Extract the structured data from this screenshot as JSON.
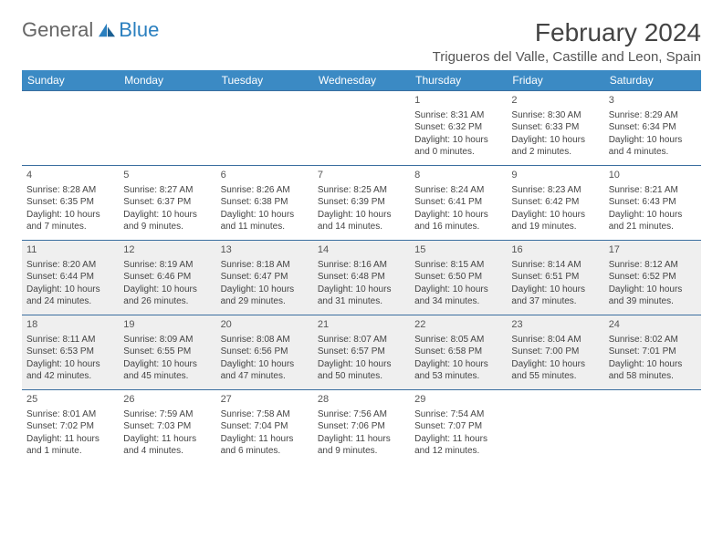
{
  "brand": {
    "part1": "General",
    "part2": "Blue"
  },
  "title": "February 2024",
  "location": "Trigueros del Valle, Castille and Leon, Spain",
  "colors": {
    "header_bg": "#3b8ac4",
    "row_border": "#3b6fa0",
    "shaded_bg": "#efefef",
    "text": "#444"
  },
  "dayHeaders": [
    "Sunday",
    "Monday",
    "Tuesday",
    "Wednesday",
    "Thursday",
    "Friday",
    "Saturday"
  ],
  "weeks": [
    [
      {
        "empty": true
      },
      {
        "empty": true
      },
      {
        "empty": true
      },
      {
        "empty": true
      },
      {
        "day": "1",
        "sunrise": "Sunrise: 8:31 AM",
        "sunset": "Sunset: 6:32 PM",
        "d1": "Daylight: 10 hours",
        "d2": "and 0 minutes."
      },
      {
        "day": "2",
        "sunrise": "Sunrise: 8:30 AM",
        "sunset": "Sunset: 6:33 PM",
        "d1": "Daylight: 10 hours",
        "d2": "and 2 minutes."
      },
      {
        "day": "3",
        "sunrise": "Sunrise: 8:29 AM",
        "sunset": "Sunset: 6:34 PM",
        "d1": "Daylight: 10 hours",
        "d2": "and 4 minutes."
      }
    ],
    [
      {
        "day": "4",
        "sunrise": "Sunrise: 8:28 AM",
        "sunset": "Sunset: 6:35 PM",
        "d1": "Daylight: 10 hours",
        "d2": "and 7 minutes."
      },
      {
        "day": "5",
        "sunrise": "Sunrise: 8:27 AM",
        "sunset": "Sunset: 6:37 PM",
        "d1": "Daylight: 10 hours",
        "d2": "and 9 minutes."
      },
      {
        "day": "6",
        "sunrise": "Sunrise: 8:26 AM",
        "sunset": "Sunset: 6:38 PM",
        "d1": "Daylight: 10 hours",
        "d2": "and 11 minutes."
      },
      {
        "day": "7",
        "sunrise": "Sunrise: 8:25 AM",
        "sunset": "Sunset: 6:39 PM",
        "d1": "Daylight: 10 hours",
        "d2": "and 14 minutes."
      },
      {
        "day": "8",
        "sunrise": "Sunrise: 8:24 AM",
        "sunset": "Sunset: 6:41 PM",
        "d1": "Daylight: 10 hours",
        "d2": "and 16 minutes."
      },
      {
        "day": "9",
        "sunrise": "Sunrise: 8:23 AM",
        "sunset": "Sunset: 6:42 PM",
        "d1": "Daylight: 10 hours",
        "d2": "and 19 minutes."
      },
      {
        "day": "10",
        "sunrise": "Sunrise: 8:21 AM",
        "sunset": "Sunset: 6:43 PM",
        "d1": "Daylight: 10 hours",
        "d2": "and 21 minutes."
      }
    ],
    [
      {
        "day": "11",
        "shaded": true,
        "sunrise": "Sunrise: 8:20 AM",
        "sunset": "Sunset: 6:44 PM",
        "d1": "Daylight: 10 hours",
        "d2": "and 24 minutes."
      },
      {
        "day": "12",
        "shaded": true,
        "sunrise": "Sunrise: 8:19 AM",
        "sunset": "Sunset: 6:46 PM",
        "d1": "Daylight: 10 hours",
        "d2": "and 26 minutes."
      },
      {
        "day": "13",
        "shaded": true,
        "sunrise": "Sunrise: 8:18 AM",
        "sunset": "Sunset: 6:47 PM",
        "d1": "Daylight: 10 hours",
        "d2": "and 29 minutes."
      },
      {
        "day": "14",
        "shaded": true,
        "sunrise": "Sunrise: 8:16 AM",
        "sunset": "Sunset: 6:48 PM",
        "d1": "Daylight: 10 hours",
        "d2": "and 31 minutes."
      },
      {
        "day": "15",
        "shaded": true,
        "sunrise": "Sunrise: 8:15 AM",
        "sunset": "Sunset: 6:50 PM",
        "d1": "Daylight: 10 hours",
        "d2": "and 34 minutes."
      },
      {
        "day": "16",
        "shaded": true,
        "sunrise": "Sunrise: 8:14 AM",
        "sunset": "Sunset: 6:51 PM",
        "d1": "Daylight: 10 hours",
        "d2": "and 37 minutes."
      },
      {
        "day": "17",
        "shaded": true,
        "sunrise": "Sunrise: 8:12 AM",
        "sunset": "Sunset: 6:52 PM",
        "d1": "Daylight: 10 hours",
        "d2": "and 39 minutes."
      }
    ],
    [
      {
        "day": "18",
        "shaded": true,
        "sunrise": "Sunrise: 8:11 AM",
        "sunset": "Sunset: 6:53 PM",
        "d1": "Daylight: 10 hours",
        "d2": "and 42 minutes."
      },
      {
        "day": "19",
        "shaded": true,
        "sunrise": "Sunrise: 8:09 AM",
        "sunset": "Sunset: 6:55 PM",
        "d1": "Daylight: 10 hours",
        "d2": "and 45 minutes."
      },
      {
        "day": "20",
        "shaded": true,
        "sunrise": "Sunrise: 8:08 AM",
        "sunset": "Sunset: 6:56 PM",
        "d1": "Daylight: 10 hours",
        "d2": "and 47 minutes."
      },
      {
        "day": "21",
        "shaded": true,
        "sunrise": "Sunrise: 8:07 AM",
        "sunset": "Sunset: 6:57 PM",
        "d1": "Daylight: 10 hours",
        "d2": "and 50 minutes."
      },
      {
        "day": "22",
        "shaded": true,
        "sunrise": "Sunrise: 8:05 AM",
        "sunset": "Sunset: 6:58 PM",
        "d1": "Daylight: 10 hours",
        "d2": "and 53 minutes."
      },
      {
        "day": "23",
        "shaded": true,
        "sunrise": "Sunrise: 8:04 AM",
        "sunset": "Sunset: 7:00 PM",
        "d1": "Daylight: 10 hours",
        "d2": "and 55 minutes."
      },
      {
        "day": "24",
        "shaded": true,
        "sunrise": "Sunrise: 8:02 AM",
        "sunset": "Sunset: 7:01 PM",
        "d1": "Daylight: 10 hours",
        "d2": "and 58 minutes."
      }
    ],
    [
      {
        "day": "25",
        "sunrise": "Sunrise: 8:01 AM",
        "sunset": "Sunset: 7:02 PM",
        "d1": "Daylight: 11 hours",
        "d2": "and 1 minute."
      },
      {
        "day": "26",
        "sunrise": "Sunrise: 7:59 AM",
        "sunset": "Sunset: 7:03 PM",
        "d1": "Daylight: 11 hours",
        "d2": "and 4 minutes."
      },
      {
        "day": "27",
        "sunrise": "Sunrise: 7:58 AM",
        "sunset": "Sunset: 7:04 PM",
        "d1": "Daylight: 11 hours",
        "d2": "and 6 minutes."
      },
      {
        "day": "28",
        "sunrise": "Sunrise: 7:56 AM",
        "sunset": "Sunset: 7:06 PM",
        "d1": "Daylight: 11 hours",
        "d2": "and 9 minutes."
      },
      {
        "day": "29",
        "sunrise": "Sunrise: 7:54 AM",
        "sunset": "Sunset: 7:07 PM",
        "d1": "Daylight: 11 hours",
        "d2": "and 12 minutes."
      },
      {
        "empty": true
      },
      {
        "empty": true
      }
    ]
  ]
}
